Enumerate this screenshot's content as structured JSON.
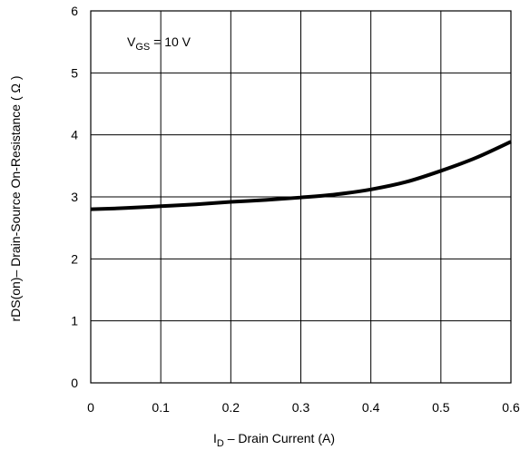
{
  "chart_data": {
    "type": "line",
    "title": "",
    "xlabel": {
      "symbol": "I",
      "subscript": "D",
      "text": " –  Drain Current (A)"
    },
    "ylabel": "rDS(on)– Drain-Source On-Resistance ( Ω )",
    "xlim": [
      0,
      0.6
    ],
    "ylim": [
      0,
      6
    ],
    "xticks": [
      "0",
      "0.1",
      "0.2",
      "0.3",
      "0.4",
      "0.5",
      "0.6"
    ],
    "yticks": [
      "0",
      "1",
      "2",
      "3",
      "4",
      "5",
      "6"
    ],
    "grid": true,
    "annotation": {
      "symbol": "V",
      "subscript": "GS",
      "text": " = 10 V"
    },
    "series": [
      {
        "color": "#000000",
        "x": [
          0,
          0.05,
          0.1,
          0.15,
          0.2,
          0.25,
          0.3,
          0.35,
          0.4,
          0.45,
          0.5,
          0.55,
          0.6
        ],
        "y": [
          2.8,
          2.82,
          2.85,
          2.88,
          2.92,
          2.95,
          2.99,
          3.04,
          3.12,
          3.24,
          3.42,
          3.63,
          3.89
        ]
      }
    ]
  }
}
